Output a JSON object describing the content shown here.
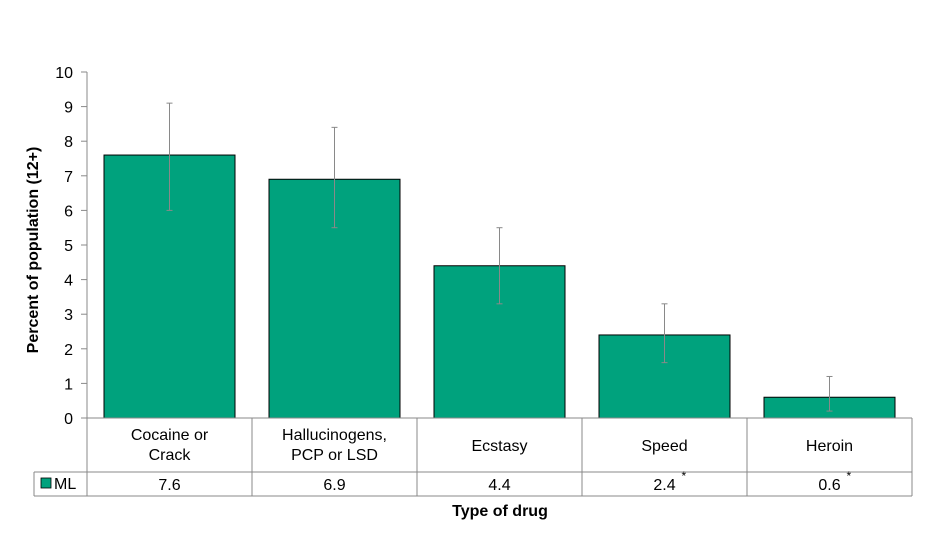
{
  "chart_data": {
    "type": "bar",
    "title": "",
    "xlabel": "Type of drug",
    "ylabel": "Percent of population (12+)",
    "ylim": [
      0,
      10
    ],
    "yticks": [
      "0",
      "1",
      "2",
      "3",
      "4",
      "5",
      "6",
      "7",
      "8",
      "9",
      "10"
    ],
    "categories": [
      [
        "Cocaine or",
        "Crack"
      ],
      [
        "Hallucinogens,",
        "PCP or LSD"
      ],
      [
        "Ecstasy"
      ],
      [
        "Speed"
      ],
      [
        "Heroin"
      ]
    ],
    "series": [
      {
        "name": "ML",
        "color": "#00A27D",
        "values": [
          7.6,
          6.9,
          4.4,
          2.4,
          0.6
        ],
        "value_labels": [
          "7.6",
          "6.9",
          "4.4",
          "2.4",
          "0.6"
        ],
        "value_flags": [
          "",
          "",
          "",
          "*",
          "*"
        ],
        "error_low": [
          6.0,
          5.5,
          3.3,
          1.6,
          0.2
        ],
        "error_high": [
          9.1,
          8.4,
          5.5,
          3.3,
          1.2
        ]
      }
    ],
    "grid": false,
    "legend": "data-table"
  }
}
